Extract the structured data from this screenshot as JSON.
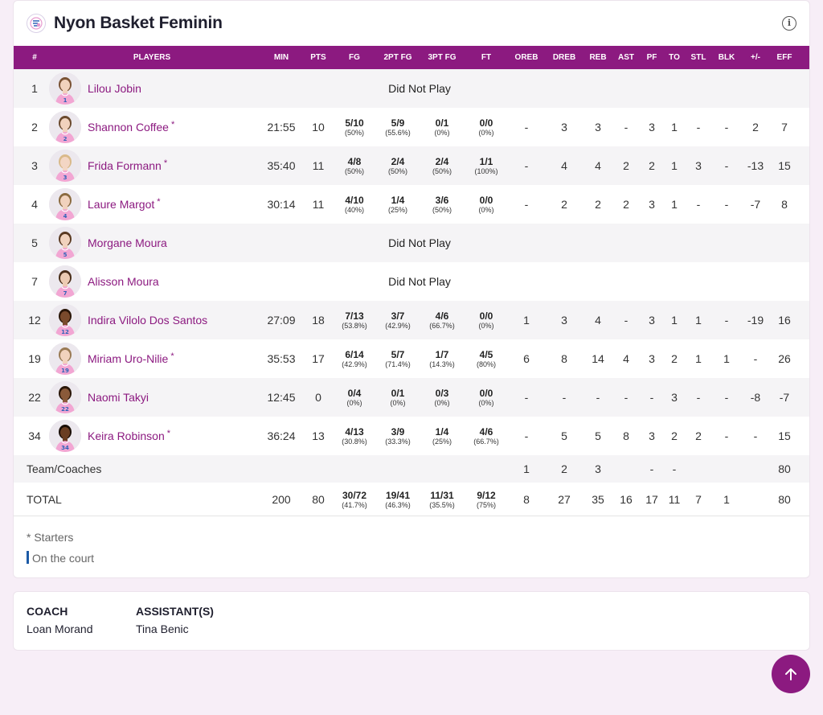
{
  "team": {
    "name": "Nyon Basket Feminin"
  },
  "columns": [
    "#",
    "PLAYERS",
    "MIN",
    "PTS",
    "FG",
    "2PT FG",
    "3PT FG",
    "FT",
    "OREB",
    "DREB",
    "REB",
    "AST",
    "PF",
    "TO",
    "STL",
    "BLK",
    "+/-",
    "EFF"
  ],
  "players": [
    {
      "num": "1",
      "name": "Lilou Jobin",
      "starter": false,
      "dnp": true,
      "jersey": "1",
      "skin": "#f1d2bd",
      "hair": "#7a5234"
    },
    {
      "num": "2",
      "name": "Shannon Coffee",
      "starter": true,
      "dnp": false,
      "jersey": "2",
      "skin": "#f1d2bd",
      "hair": "#6b4a2e",
      "min": "21:55",
      "pts": "10",
      "fg_m": "5/10",
      "fg_p": "(50%)",
      "fg2_m": "5/9",
      "fg2_p": "(55.6%)",
      "fg3_m": "0/1",
      "fg3_p": "(0%)",
      "ft_m": "0/0",
      "ft_p": "(0%)",
      "oreb": "-",
      "dreb": "3",
      "reb": "3",
      "ast": "-",
      "pf": "3",
      "to": "1",
      "stl": "-",
      "blk": "-",
      "pm": "2",
      "eff": "7"
    },
    {
      "num": "3",
      "name": "Frida Formann",
      "starter": true,
      "dnp": false,
      "jersey": "3",
      "skin": "#f3d6c4",
      "hair": "#d9b98a",
      "min": "35:40",
      "pts": "11",
      "fg_m": "4/8",
      "fg_p": "(50%)",
      "fg2_m": "2/4",
      "fg2_p": "(50%)",
      "fg3_m": "2/4",
      "fg3_p": "(50%)",
      "ft_m": "1/1",
      "ft_p": "(100%)",
      "oreb": "-",
      "dreb": "4",
      "reb": "4",
      "ast": "2",
      "pf": "2",
      "to": "1",
      "stl": "3",
      "blk": "-",
      "pm": "-13",
      "eff": "15"
    },
    {
      "num": "4",
      "name": "Laure Margot",
      "starter": true,
      "dnp": false,
      "jersey": "4",
      "skin": "#f1d2bd",
      "hair": "#8a6a40",
      "min": "30:14",
      "pts": "11",
      "fg_m": "4/10",
      "fg_p": "(40%)",
      "fg2_m": "1/4",
      "fg2_p": "(25%)",
      "fg3_m": "3/6",
      "fg3_p": "(50%)",
      "ft_m": "0/0",
      "ft_p": "(0%)",
      "oreb": "-",
      "dreb": "2",
      "reb": "2",
      "ast": "2",
      "pf": "3",
      "to": "1",
      "stl": "-",
      "blk": "-",
      "pm": "-7",
      "eff": "8"
    },
    {
      "num": "5",
      "name": "Morgane Moura",
      "starter": false,
      "dnp": true,
      "jersey": "5",
      "skin": "#f1d2bd",
      "hair": "#5a3a22"
    },
    {
      "num": "7",
      "name": "Alisson Moura",
      "starter": false,
      "dnp": true,
      "jersey": "7",
      "skin": "#eccab2",
      "hair": "#4a2e1a"
    },
    {
      "num": "12",
      "name": "Indira Vilolo Dos Santos",
      "starter": false,
      "dnp": false,
      "jersey": "12",
      "skin": "#7a4a2c",
      "hair": "#2a1608",
      "min": "27:09",
      "pts": "18",
      "fg_m": "7/13",
      "fg_p": "(53.8%)",
      "fg2_m": "3/7",
      "fg2_p": "(42.9%)",
      "fg3_m": "4/6",
      "fg3_p": "(66.7%)",
      "ft_m": "0/0",
      "ft_p": "(0%)",
      "oreb": "1",
      "dreb": "3",
      "reb": "4",
      "ast": "-",
      "pf": "3",
      "to": "1",
      "stl": "1",
      "blk": "-",
      "pm": "-19",
      "eff": "16"
    },
    {
      "num": "19",
      "name": "Miriam Uro-Nilie",
      "starter": true,
      "dnp": false,
      "jersey": "19",
      "skin": "#f1d2bd",
      "hair": "#9a7a54",
      "min": "35:53",
      "pts": "17",
      "fg_m": "6/14",
      "fg_p": "(42.9%)",
      "fg2_m": "5/7",
      "fg2_p": "(71.4%)",
      "fg3_m": "1/7",
      "fg3_p": "(14.3%)",
      "ft_m": "4/5",
      "ft_p": "(80%)",
      "oreb": "6",
      "dreb": "8",
      "reb": "14",
      "ast": "4",
      "pf": "3",
      "to": "2",
      "stl": "1",
      "blk": "1",
      "pm": "-",
      "eff": "26"
    },
    {
      "num": "22",
      "name": "Naomi Takyi",
      "starter": false,
      "dnp": false,
      "jersey": "22",
      "skin": "#8a5a3a",
      "hair": "#2a1608",
      "min": "12:45",
      "pts": "0",
      "fg_m": "0/4",
      "fg_p": "(0%)",
      "fg2_m": "0/1",
      "fg2_p": "(0%)",
      "fg3_m": "0/3",
      "fg3_p": "(0%)",
      "ft_m": "0/0",
      "ft_p": "(0%)",
      "oreb": "-",
      "dreb": "-",
      "reb": "-",
      "ast": "-",
      "pf": "-",
      "to": "3",
      "stl": "-",
      "blk": "-",
      "pm": "-8",
      "eff": "-7"
    },
    {
      "num": "34",
      "name": "Keira Robinson",
      "starter": true,
      "dnp": false,
      "jersey": "34",
      "skin": "#6a3e22",
      "hair": "#1a0e06",
      "min": "36:24",
      "pts": "13",
      "fg_m": "4/13",
      "fg_p": "(30.8%)",
      "fg2_m": "3/9",
      "fg2_p": "(33.3%)",
      "fg3_m": "1/4",
      "fg3_p": "(25%)",
      "ft_m": "4/6",
      "ft_p": "(66.7%)",
      "oreb": "-",
      "dreb": "5",
      "reb": "5",
      "ast": "8",
      "pf": "3",
      "to": "2",
      "stl": "2",
      "blk": "-",
      "pm": "-",
      "eff": "15"
    }
  ],
  "dnp_label": "Did Not Play",
  "starter_mark": "*",
  "team_row": {
    "label": "Team/Coaches",
    "oreb": "1",
    "dreb": "2",
    "reb": "3",
    "pf": "-",
    "to": "-",
    "eff": "80"
  },
  "total_row": {
    "label": "TOTAL",
    "min": "200",
    "pts": "80",
    "fg_m": "30/72",
    "fg_p": "(41.7%)",
    "fg2_m": "19/41",
    "fg2_p": "(46.3%)",
    "fg3_m": "11/31",
    "fg3_p": "(35.5%)",
    "ft_m": "9/12",
    "ft_p": "(75%)",
    "oreb": "8",
    "dreb": "27",
    "reb": "35",
    "ast": "16",
    "pf": "17",
    "to": "11",
    "stl": "7",
    "blk": "1",
    "eff": "80"
  },
  "legend": {
    "starters": "* Starters",
    "on_court": "On the court"
  },
  "staff": {
    "coach_label": "COACH",
    "coach_name": "Loan Morand",
    "assistant_label": "ASSISTANT(S)",
    "assistant_name": "Tina Benic"
  },
  "colors": {
    "brand": "#8c1a80",
    "on_court": "#1c5aa6",
    "page_bg": "#f7eef7",
    "jersey": "#f2a6d3"
  }
}
